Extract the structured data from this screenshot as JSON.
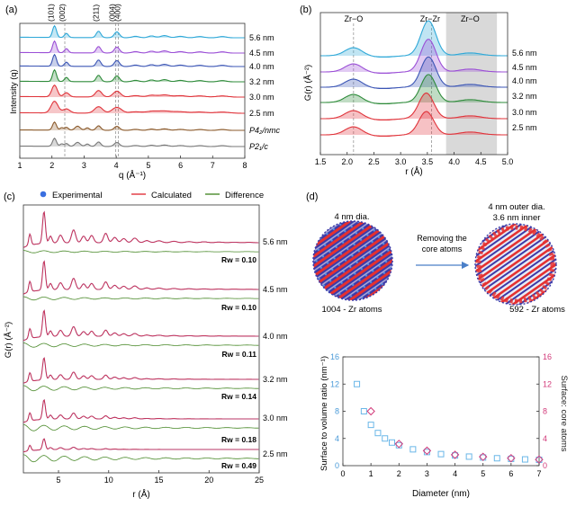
{
  "chart_data": [
    {
      "panel": "(a)",
      "type": "line",
      "title": "",
      "xlabel": "q (Å⁻¹)",
      "ylabel": "Intensity (q)",
      "xlim": [
        1,
        8
      ],
      "xticks": [
        "1",
        "2",
        "3",
        "4",
        "5",
        "6",
        "7",
        "8"
      ],
      "peak_labels": [
        "(101)",
        "(002)",
        "(211)",
        "(004)",
        "(400)"
      ],
      "peak_positions": [
        2.05,
        2.4,
        3.45,
        3.98,
        4.07
      ],
      "series": [
        {
          "name": "5.6 nm",
          "color": "#2ea8d8"
        },
        {
          "name": "4.5 nm",
          "color": "#9b4fd6"
        },
        {
          "name": "4.0 nm",
          "color": "#3b55b5"
        },
        {
          "name": "3.2 nm",
          "color": "#2e8b3a"
        },
        {
          "name": "3.0 nm",
          "color": "#e0333a"
        },
        {
          "name": "2.5 nm",
          "color": "#e0333a"
        },
        {
          "name": "P4₂/nmc",
          "color": "#8b5a2b"
        },
        {
          "name": "P2₁/c",
          "color": "#777777"
        }
      ]
    },
    {
      "panel": "(b)",
      "type": "line",
      "xlabel": "r (Å)",
      "ylabel": "G(r) (Å⁻²)",
      "xlim": [
        1.5,
        5.0
      ],
      "xticks": [
        "1.5",
        "2.0",
        "2.5",
        "3.0",
        "3.5",
        "4.0",
        "4.5",
        "5.0"
      ],
      "annotations": [
        "Zr−O",
        "Zr−Zr",
        "Zr−O"
      ],
      "shaded_range": [
        3.85,
        4.8
      ],
      "series": [
        {
          "name": "5.6 nm",
          "color": "#2ea8d8"
        },
        {
          "name": "4.5 nm",
          "color": "#9b4fd6"
        },
        {
          "name": "4.0 nm",
          "color": "#3b55b5"
        },
        {
          "name": "3.2 nm",
          "color": "#2e8b3a"
        },
        {
          "name": "3.0 nm",
          "color": "#e0333a"
        },
        {
          "name": "2.5 nm",
          "color": "#e0333a"
        }
      ]
    },
    {
      "panel": "(c)",
      "type": "line",
      "xlabel": "r (Å)",
      "ylabel": "G(r) (Å⁻²)",
      "xlim": [
        1.5,
        25
      ],
      "xticks": [
        "5",
        "10",
        "15",
        "20",
        "25"
      ],
      "legend": [
        "Experimental",
        "Calculated",
        "Difference"
      ],
      "fits": [
        {
          "size": "5.6 nm",
          "rw": "Rw = 0.10"
        },
        {
          "size": "4.5 nm",
          "rw": "Rw = 0.10"
        },
        {
          "size": "4.0 nm",
          "rw": "Rw = 0.11"
        },
        {
          "size": "3.2 nm",
          "rw": "Rw = 0.14"
        },
        {
          "size": "3.0 nm",
          "rw": "Rw = 0.18"
        },
        {
          "size": "2.5 nm",
          "rw": "Rw = 0.49"
        }
      ]
    },
    {
      "panel": "(d)",
      "type": "scatter",
      "xlabel": "Diameter (nm)",
      "ylabel": "Surface to volume ratio (nm⁻¹)",
      "y2label": "Surface: core atoms",
      "xlim": [
        0,
        7
      ],
      "ylim": [
        0,
        16
      ],
      "xticks": [
        "0",
        "1",
        "2",
        "3",
        "4",
        "5",
        "6",
        "7"
      ],
      "yticks": [
        "0",
        "4",
        "8",
        "12",
        "16"
      ],
      "series": [
        {
          "name": "Surface to volume ratio",
          "marker": "square",
          "color": "#6ab7e8",
          "x": [
            0.5,
            0.75,
            1.0,
            1.25,
            1.5,
            1.75,
            2.0,
            2.5,
            3.0,
            3.5,
            4.0,
            4.5,
            5.0,
            5.5,
            6.0,
            6.5,
            7.0
          ],
          "y": [
            12,
            8,
            6,
            4.8,
            4,
            3.4,
            3,
            2.4,
            2,
            1.7,
            1.5,
            1.33,
            1.2,
            1.09,
            1.0,
            0.92,
            0.86
          ]
        },
        {
          "name": "Surface: core atoms",
          "marker": "diamond",
          "color": "#d23a7a",
          "x": [
            1.0,
            2.0,
            3.0,
            4.0,
            5.0,
            6.0,
            7.0
          ],
          "y": [
            8,
            3.2,
            2.2,
            1.6,
            1.3,
            1.1,
            0.9
          ]
        }
      ],
      "cluster_labels": {
        "full_caption": "4 nm dia.",
        "full_count": "1004 - Zr atoms",
        "shell_caption_1": "4 nm outer dia.",
        "shell_caption_2": "3.6 nm inner",
        "shell_count": "592 - Zr atoms",
        "arrow_label_1": "Removing the",
        "arrow_label_2": "core atoms"
      }
    }
  ]
}
